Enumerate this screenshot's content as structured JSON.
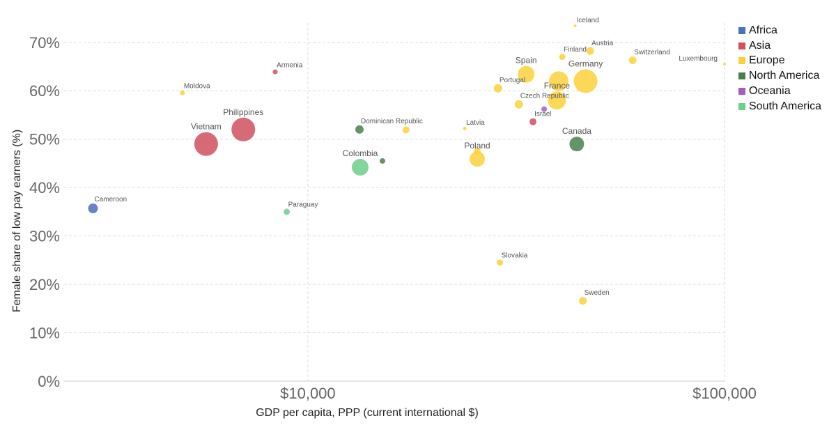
{
  "chart_data": {
    "type": "scatter",
    "xlabel": "GDP per capita, PPP (current international $)",
    "ylabel": "Female share of low pay earners (%)",
    "x_scale": "log",
    "xlim": [
      2600,
      100000
    ],
    "ylim": [
      0,
      74
    ],
    "x_ticks": [
      {
        "value": 10000,
        "label": "$10,000"
      },
      {
        "value": 100000,
        "label": "$100,000"
      }
    ],
    "y_ticks": [
      {
        "value": 0,
        "label": "0%"
      },
      {
        "value": 10,
        "label": "10%"
      },
      {
        "value": 20,
        "label": "20%"
      },
      {
        "value": 30,
        "label": "30%"
      },
      {
        "value": 40,
        "label": "40%"
      },
      {
        "value": 50,
        "label": "50%"
      },
      {
        "value": 60,
        "label": "60%"
      },
      {
        "value": 70,
        "label": "70%"
      }
    ],
    "grid": true,
    "legend_position": "right",
    "series": [
      {
        "name": "Africa",
        "color": "#4c6fbf"
      },
      {
        "name": "Asia",
        "color": "#d0505f"
      },
      {
        "name": "Europe",
        "color": "#fbd13b"
      },
      {
        "name": "North America",
        "color": "#4a7f4b"
      },
      {
        "name": "Oceania",
        "color": "#a35bc4"
      },
      {
        "name": "South America",
        "color": "#6ccf8c"
      }
    ],
    "points": [
      {
        "label": "Cameroon",
        "x": 3050,
        "y": 35.7,
        "region": "Africa",
        "r": 7,
        "label_size": "small"
      },
      {
        "label": "Moldova",
        "x": 5000,
        "y": 59.6,
        "region": "Europe",
        "r": 3.5,
        "label_size": "small"
      },
      {
        "label": "Vietnam",
        "x": 5700,
        "y": 49,
        "region": "Asia",
        "r": 17,
        "label_size": "large"
      },
      {
        "label": "Philippines",
        "x": 7000,
        "y": 52,
        "region": "Asia",
        "r": 17,
        "label_size": "large"
      },
      {
        "label": "Armenia",
        "x": 8350,
        "y": 63.9,
        "region": "Asia",
        "r": 3.5,
        "label_size": "small"
      },
      {
        "label": "Paraguay",
        "x": 8900,
        "y": 35,
        "region": "South America",
        "r": 4.5,
        "label_size": "small"
      },
      {
        "label": "Dominican Republic",
        "x": 13300,
        "y": 52,
        "region": "North America",
        "r": 6,
        "label_size": "small"
      },
      {
        "label": "Colombia",
        "x": 13350,
        "y": 44.2,
        "region": "South America",
        "r": 12,
        "label_size": "large"
      },
      {
        "label": "",
        "x": 15100,
        "y": 45.5,
        "region": "North America",
        "r": 4,
        "label_size": "small"
      },
      {
        "label": "",
        "x": 17200,
        "y": 51.9,
        "region": "Europe",
        "r": 5,
        "label_size": "small"
      },
      {
        "label": "Latvia",
        "x": 23800,
        "y": 52.2,
        "region": "Europe",
        "r": 2.5,
        "label_size": "small"
      },
      {
        "label": "Poland",
        "x": 25500,
        "y": 45.9,
        "region": "Europe",
        "r": 11,
        "label_size": "large"
      },
      {
        "label": "",
        "x": 25500,
        "y": 47.5,
        "region": "Europe",
        "r": 5,
        "label_size": "small"
      },
      {
        "label": "Portugal",
        "x": 28600,
        "y": 60.5,
        "region": "Europe",
        "r": 6,
        "label_size": "small"
      },
      {
        "label": "Slovakia",
        "x": 28900,
        "y": 24.5,
        "region": "Europe",
        "r": 4.5,
        "label_size": "small"
      },
      {
        "label": "Czech Republic",
        "x": 32100,
        "y": 57.2,
        "region": "Europe",
        "r": 6,
        "label_size": "small"
      },
      {
        "label": "Spain",
        "x": 33400,
        "y": 63.4,
        "region": "Europe",
        "r": 12,
        "label_size": "large"
      },
      {
        "label": "Israel",
        "x": 34700,
        "y": 53.6,
        "region": "Asia",
        "r": 5,
        "label_size": "small"
      },
      {
        "label": "",
        "x": 36900,
        "y": 56.2,
        "region": "Oceania",
        "r": 4,
        "label_size": "small"
      },
      {
        "label": "Finland",
        "x": 40800,
        "y": 67,
        "region": "Europe",
        "r": 4.5,
        "label_size": "small"
      },
      {
        "label": "France",
        "x": 39600,
        "y": 58,
        "region": "Europe",
        "r": 13,
        "label_size": "large"
      },
      {
        "label": "",
        "x": 40000,
        "y": 62,
        "region": "Europe",
        "r": 14,
        "label_size": "small"
      },
      {
        "label": "Iceland",
        "x": 43800,
        "y": 73.4,
        "region": "Europe",
        "r": 2,
        "label_size": "small"
      },
      {
        "label": "Canada",
        "x": 44200,
        "y": 49,
        "region": "North America",
        "r": 10.5,
        "label_size": "large"
      },
      {
        "label": "Germany",
        "x": 46400,
        "y": 62,
        "region": "Europe",
        "r": 17,
        "label_size": "large"
      },
      {
        "label": "Austria",
        "x": 47600,
        "y": 68.2,
        "region": "Europe",
        "r": 5.5,
        "label_size": "small"
      },
      {
        "label": "Sweden",
        "x": 45700,
        "y": 16.6,
        "region": "Europe",
        "r": 5.5,
        "label_size": "small"
      },
      {
        "label": "Switzerland",
        "x": 60200,
        "y": 66.3,
        "region": "Europe",
        "r": 5.5,
        "label_size": "small"
      },
      {
        "label": "Luxembourg",
        "x": 100000,
        "y": 65.5,
        "region": "Europe",
        "r": 2,
        "label_size": "small"
      }
    ]
  }
}
